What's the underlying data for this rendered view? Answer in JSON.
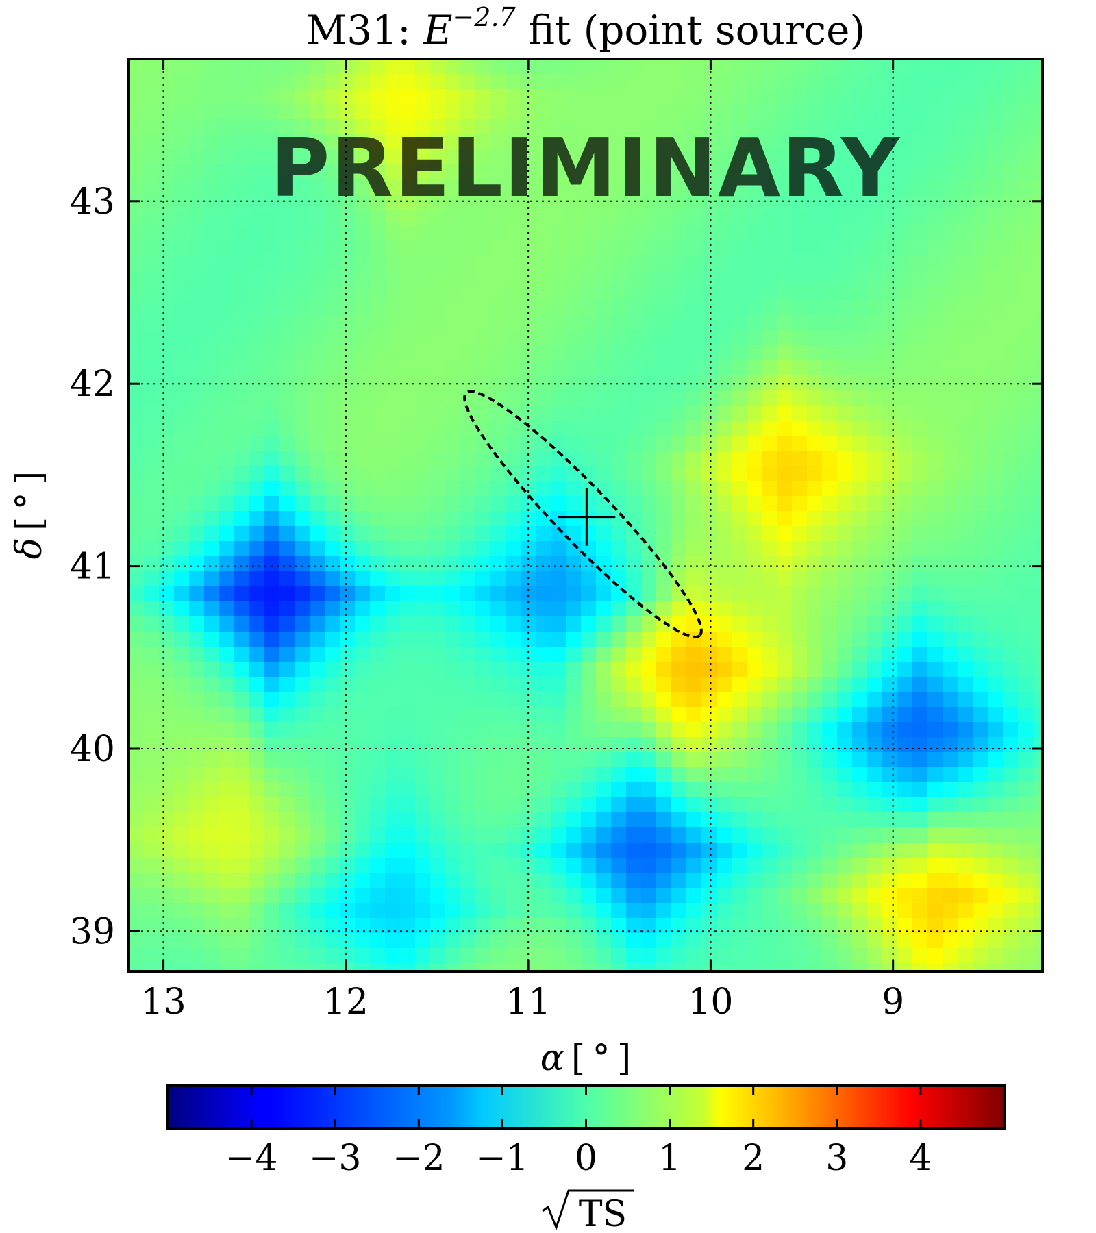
{
  "chart_data": {
    "type": "heatmap",
    "title": {
      "prefix": "M31: ",
      "symbol": "E",
      "exponent": "−2.7",
      "suffix": " fit (point source)"
    },
    "watermark": "PRELIMINARY",
    "xlabel": {
      "symbol": "α",
      "unit": "[ ° ]"
    },
    "ylabel": {
      "symbol": "δ",
      "unit": "[ ° ]"
    },
    "xlim": [
      13.19,
      8.18
    ],
    "ylim": [
      38.78,
      43.78
    ],
    "x_inverted": true,
    "xticks": [
      "13",
      "12",
      "11",
      "10",
      "9"
    ],
    "yticks": [
      "43",
      "42",
      "41",
      "40",
      "39"
    ],
    "grid": true,
    "grid_style": "dotted",
    "best_fit": {
      "ra": 10.68,
      "dec": 41.27
    },
    "error_ellipse": {
      "style": "dashed",
      "extreme_points": [
        [
          11.34,
          41.95
        ],
        [
          10.06,
          40.62
        ]
      ]
    },
    "features": [
      {
        "kind": "deficit",
        "ra": 12.4,
        "dec": 40.85,
        "sqrt_ts": -3.6
      },
      {
        "kind": "deficit",
        "ra": 10.38,
        "dec": 39.45,
        "sqrt_ts": -2.8
      },
      {
        "kind": "deficit",
        "ra": 8.85,
        "dec": 40.08,
        "sqrt_ts": -2.4
      },
      {
        "kind": "deficit",
        "ra": 10.85,
        "dec": 40.85,
        "sqrt_ts": -1.8
      },
      {
        "kind": "deficit",
        "ra": 11.7,
        "dec": 39.12,
        "sqrt_ts": -1.5
      },
      {
        "kind": "excess",
        "ra": 10.12,
        "dec": 40.45,
        "sqrt_ts": 1.8
      },
      {
        "kind": "excess",
        "ra": 9.6,
        "dec": 41.55,
        "sqrt_ts": 1.7
      },
      {
        "kind": "excess",
        "ra": 8.8,
        "dec": 39.2,
        "sqrt_ts": 2.0
      },
      {
        "kind": "excess",
        "ra": 11.7,
        "dec": 43.55,
        "sqrt_ts": 1.6
      },
      {
        "kind": "excess",
        "ra": 12.6,
        "dec": 39.5,
        "sqrt_ts": 1.2
      }
    ],
    "colorbar": {
      "label": "√TS",
      "range": [
        -5,
        5
      ],
      "ticks": [
        "−4",
        "−3",
        "−2",
        "−1",
        "0",
        "1",
        "2",
        "3",
        "4"
      ],
      "colormap": "jet"
    }
  }
}
